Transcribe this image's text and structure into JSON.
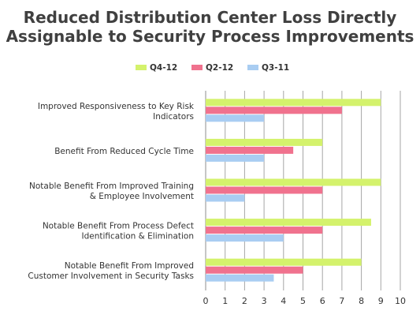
{
  "chart_data": {
    "type": "bar",
    "orientation": "horizontal",
    "title_lines": [
      "Reduced Distribution Center Loss Directly",
      "Assignable to Security Process Improvements"
    ],
    "categories": [
      [
        "Improved Responsiveness to Key Risk",
        "Indicators"
      ],
      [
        "Benefit From Reduced Cycle Time"
      ],
      [
        "Notable Benefit From Improved Training",
        "& Employee Involvement"
      ],
      [
        "Notable Benefit From Process Defect",
        "Identification & Elimination"
      ],
      [
        "Notable Benefit From Improved",
        "Customer Involvement in Security Tasks"
      ]
    ],
    "series": [
      {
        "name": "Q4-12",
        "color": "#d4f26c",
        "values": [
          9,
          6,
          9,
          8.5,
          8
        ]
      },
      {
        "name": "Q2-12",
        "color": "#f0728e",
        "values": [
          7,
          4.5,
          6,
          6,
          5
        ]
      },
      {
        "name": "Q3-11",
        "color": "#a9cdf2",
        "values": [
          3,
          3,
          2,
          4,
          3.5
        ]
      }
    ],
    "xlim": [
      0,
      10
    ],
    "xticks": [
      "0",
      "1",
      "2",
      "3",
      "4",
      "5",
      "6",
      "7",
      "8",
      "9",
      "10"
    ],
    "grid": "vertical",
    "legend": "top-center"
  }
}
